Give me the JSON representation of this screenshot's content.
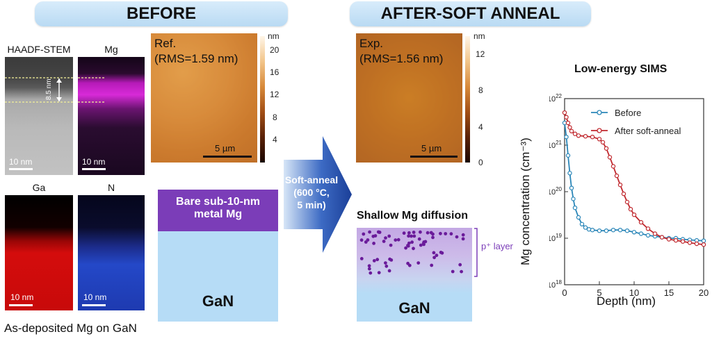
{
  "banners": {
    "before": "BEFORE",
    "after": "AFTER-SOFT ANNEAL"
  },
  "tem": {
    "haadf_label": "HAADF-STEM",
    "mg_label": "Mg",
    "ga_label": "Ga",
    "n_label": "N",
    "thickness": "8.5 nm",
    "scale": "10 nm",
    "caption": "As-deposited Mg on GaN",
    "colors": {
      "mg": "#c21cc4",
      "ga": "#e01010",
      "n": "#2a50e0"
    }
  },
  "afm_ref": {
    "line1": "Ref.",
    "line2": "(RMS=1.59 nm)",
    "scale": "5 µm",
    "unit": "nm",
    "ticks": [
      "20",
      "16",
      "12",
      "8",
      "4"
    ]
  },
  "afm_exp": {
    "line1": "Exp.",
    "line2": "(RMS=1.56 nm)",
    "scale": "5 µm",
    "unit": "nm",
    "ticks": [
      "12",
      "8",
      "4",
      "0"
    ]
  },
  "schematic_before": {
    "metal_line1": "Bare sub-10-nm",
    "metal_line2": "metal Mg",
    "substrate": "GaN",
    "colors": {
      "metal": "#7b3db8",
      "substrate": "#b6dcf6"
    }
  },
  "arrow": {
    "line1": "Soft-anneal",
    "line2": "(600 °C,",
    "line3": "5 min)"
  },
  "schematic_after": {
    "title": "Shallow Mg diffusion",
    "layer_label": "p⁺ layer",
    "substrate": "GaN"
  },
  "chart_data": {
    "type": "line",
    "title": "Low-energy SIMS",
    "xlabel": "Depth (nm)",
    "ylabel": "Mg concentration (cm⁻³)",
    "xlim": [
      0,
      20
    ],
    "ylim_log10": [
      18,
      22
    ],
    "xticks": [
      "0",
      "5",
      "10",
      "15",
      "20"
    ],
    "yticks": [
      "10",
      "10",
      "10",
      "10",
      "10"
    ],
    "ytick_exponents": [
      "22",
      "21",
      "20",
      "19",
      "18"
    ],
    "legend_position": "top-right",
    "series": [
      {
        "name": "Before",
        "color": "#2a86b8",
        "x": [
          0,
          0.25,
          0.5,
          0.75,
          1,
          1.25,
          1.5,
          2,
          2.5,
          3,
          3.5,
          4,
          5,
          6,
          7,
          8,
          9,
          10,
          11,
          12,
          13,
          14,
          15,
          16,
          17,
          18,
          19,
          20
        ],
        "y": [
          3e+21,
          1.5e+21,
          6e+20,
          2.5e+20,
          1.2e+20,
          7e+19,
          4.5e+19,
          2.8e+19,
          2e+19,
          1.7e+19,
          1.55e+19,
          1.5e+19,
          1.45e+19,
          1.45e+19,
          1.5e+19,
          1.5e+19,
          1.45e+19,
          1.35e+19,
          1.25e+19,
          1.15e+19,
          1.1e+19,
          1.05e+19,
          1e+19,
          1e+19,
          9.5e+18,
          9.2e+18,
          9e+18,
          8.8e+18
        ]
      },
      {
        "name": "After soft-anneal",
        "color": "#c0282e",
        "x": [
          0,
          0.25,
          0.5,
          0.75,
          1,
          1.5,
          2,
          3,
          4,
          5,
          5.5,
          6,
          6.5,
          7,
          7.5,
          8,
          8.5,
          9,
          9.5,
          10,
          11,
          12,
          13,
          14,
          15,
          16,
          17,
          18,
          19,
          20
        ],
        "y": [
          5e+21,
          4e+21,
          3e+21,
          2.4e+21,
          2e+21,
          1.75e+21,
          1.6e+21,
          1.55e+21,
          1.5e+21,
          1.35e+21,
          1.15e+21,
          8.5e+20,
          5.5e+20,
          3.5e+20,
          2.2e+20,
          1.4e+20,
          9e+19,
          6e+19,
          4.2e+19,
          3.2e+19,
          2.2e+19,
          1.6e+19,
          1.25e+19,
          1.05e+19,
          9.5e+18,
          9e+18,
          8.5e+18,
          8e+18,
          7.6e+18,
          7.3e+18
        ]
      }
    ]
  }
}
